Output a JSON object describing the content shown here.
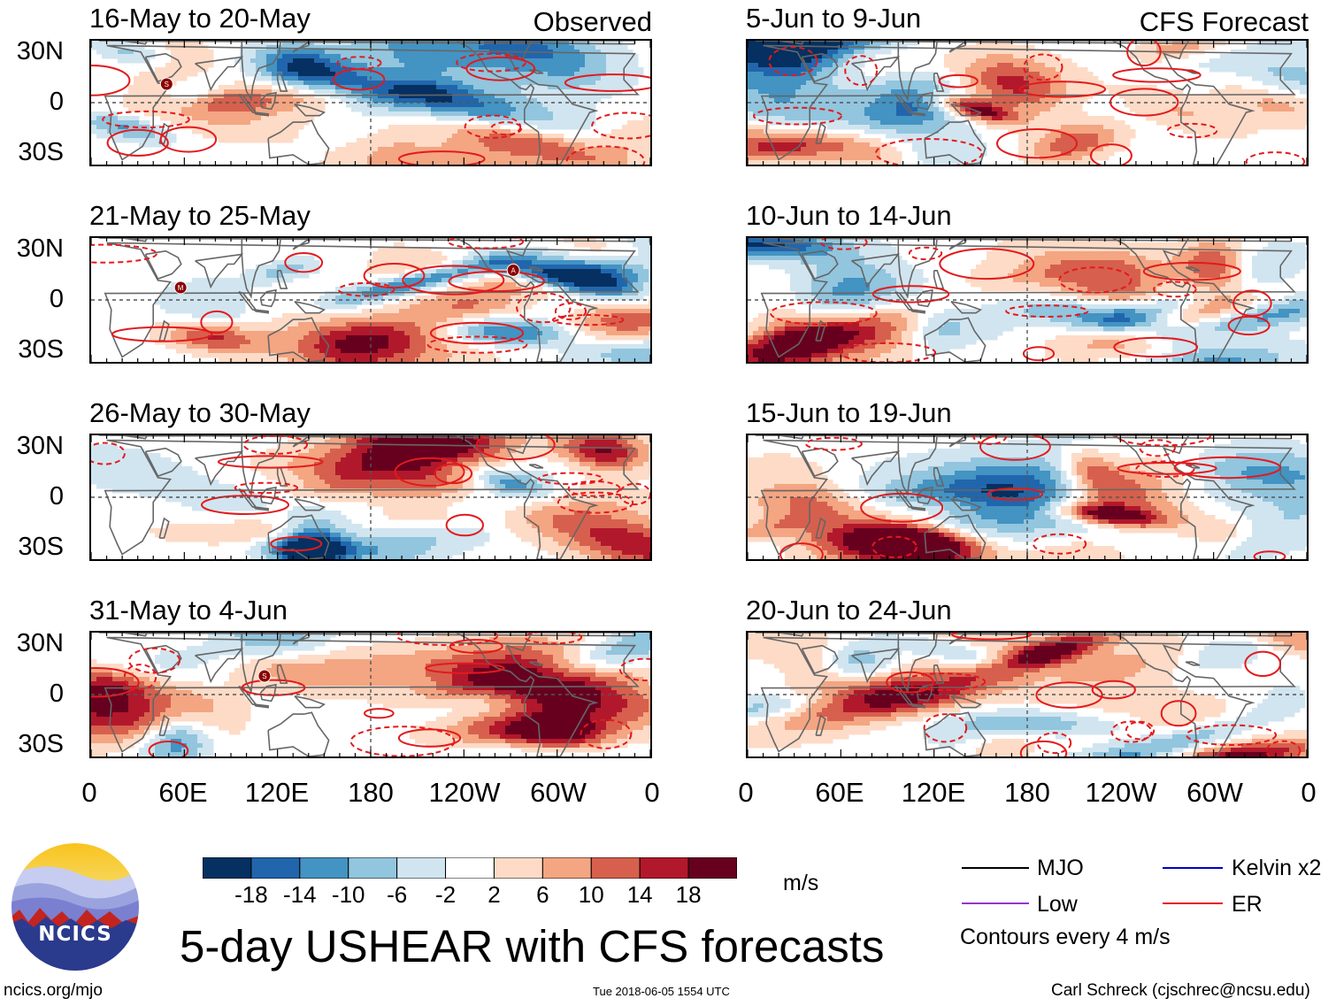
{
  "chart_data": {
    "type": "heatmap",
    "title": "5-day USHEAR with CFS forecasts",
    "variable": "USHEAR",
    "units": "m/s",
    "contour_note": "Contours every 4 m/s",
    "left_column_label": "Observed",
    "right_column_label": "CFS Forecast",
    "panels": [
      {
        "period": "16-May to 20-May",
        "column": "Observed",
        "storms": [
          "S"
        ]
      },
      {
        "period": "21-May to 25-May",
        "column": "Observed",
        "storms": [
          "M",
          "A"
        ]
      },
      {
        "period": "26-May to 30-May",
        "column": "Observed",
        "storms": []
      },
      {
        "period": "31-May to 4-Jun",
        "column": "Observed",
        "storms": [
          "S"
        ]
      },
      {
        "period": "5-Jun to 9-Jun",
        "column": "CFS Forecast",
        "storms": []
      },
      {
        "period": "10-Jun to 14-Jun",
        "column": "CFS Forecast",
        "storms": []
      },
      {
        "period": "15-Jun to 19-Jun",
        "column": "CFS Forecast",
        "storms": []
      },
      {
        "period": "20-Jun to 24-Jun",
        "column": "CFS Forecast",
        "storms": []
      }
    ],
    "y_ticks": [
      "30N",
      "0",
      "30S"
    ],
    "x_ticks": [
      "0",
      "60E",
      "120E",
      "180",
      "120W",
      "60W",
      "0"
    ],
    "colorbar": {
      "levels": [
        -18,
        -14,
        -10,
        -6,
        -2,
        2,
        6,
        10,
        14,
        18
      ],
      "colors": [
        "#053061",
        "#2166ac",
        "#4393c3",
        "#92c5de",
        "#d1e5f0",
        "#ffffff",
        "#fddbc7",
        "#f4a582",
        "#d6604d",
        "#b2182b",
        "#67001f"
      ]
    },
    "legend": [
      {
        "label": "MJO",
        "color": "#000000",
        "style": "solid"
      },
      {
        "label": "Kelvin x2",
        "color": "#0000cc",
        "style": "solid"
      },
      {
        "label": "Low",
        "color": "#9933cc",
        "style": "solid"
      },
      {
        "label": "ER",
        "color": "#e31a1c",
        "style": "solid"
      }
    ]
  },
  "logo": {
    "text": "NCICS"
  },
  "footer": {
    "url": "ncics.org/mjo",
    "timestamp": "Tue 2018-06-05 1554 UTC",
    "author": "Carl Schreck (cjschrec@ncsu.edu)"
  }
}
